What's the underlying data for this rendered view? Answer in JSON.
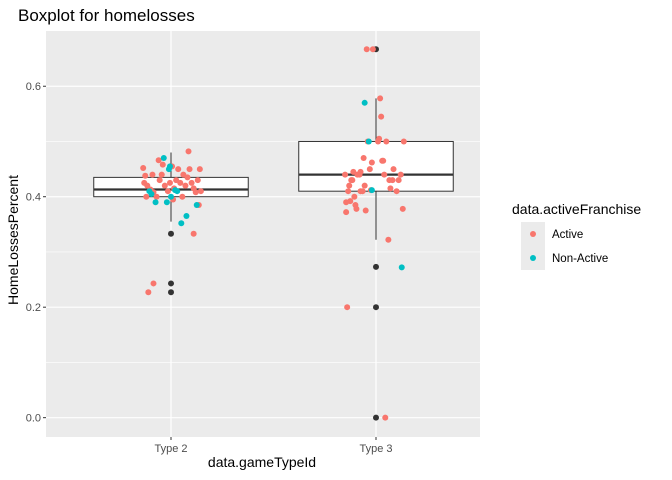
{
  "chart_data": {
    "type": "boxplot",
    "title": "Boxplot for homelosses",
    "xlabel": "data.gameTypeId",
    "ylabel": "HomeLossesPercent",
    "categories": [
      "Type 2",
      "Type 3"
    ],
    "ylim": [
      -0.035,
      0.7
    ],
    "yticks": [
      0.0,
      0.2,
      0.4,
      0.6
    ],
    "ytick_labels": [
      "0.0",
      "0.2",
      "0.4",
      "0.6"
    ],
    "grid": true,
    "legend": {
      "title": "data.activeFranchise",
      "placement": "right",
      "entries": [
        {
          "label": "Active",
          "color": "#F8766D"
        },
        {
          "label": "Non-Active",
          "color": "#00BFC4"
        }
      ]
    },
    "boxes": [
      {
        "category": "Type 2",
        "whisker_low": 0.355,
        "q1": 0.4,
        "median": 0.413,
        "q3": 0.435,
        "whisker_high": 0.48,
        "outliers": [
          0.333,
          0.243,
          0.227
        ]
      },
      {
        "category": "Type 3",
        "whisker_low": 0.322,
        "q1": 0.41,
        "median": 0.44,
        "q3": 0.5,
        "whisker_high": 0.578,
        "outliers": [
          0.667,
          0.273,
          0.2,
          0.0
        ]
      }
    ],
    "points": [
      {
        "category": "Type 2",
        "jitter": -0.27,
        "y": 0.452,
        "group": "Active"
      },
      {
        "category": "Type 2",
        "jitter": -0.25,
        "y": 0.438,
        "group": "Active"
      },
      {
        "category": "Type 2",
        "jitter": -0.26,
        "y": 0.425,
        "group": "Active"
      },
      {
        "category": "Type 2",
        "jitter": -0.23,
        "y": 0.42,
        "group": "Active"
      },
      {
        "category": "Type 2",
        "jitter": -0.24,
        "y": 0.4,
        "group": "Active"
      },
      {
        "category": "Type 2",
        "jitter": -0.2,
        "y": 0.413,
        "group": "Active"
      },
      {
        "category": "Type 2",
        "jitter": -0.17,
        "y": 0.408,
        "group": "Active"
      },
      {
        "category": "Type 2",
        "jitter": -0.14,
        "y": 0.4,
        "group": "Active"
      },
      {
        "category": "Type 2",
        "jitter": -0.12,
        "y": 0.466,
        "group": "Active"
      },
      {
        "category": "Type 2",
        "jitter": -0.11,
        "y": 0.43,
        "group": "Active"
      },
      {
        "category": "Type 2",
        "jitter": -0.09,
        "y": 0.44,
        "group": "Active"
      },
      {
        "category": "Type 2",
        "jitter": -0.08,
        "y": 0.458,
        "group": "Active"
      },
      {
        "category": "Type 2",
        "jitter": -0.06,
        "y": 0.42,
        "group": "Active"
      },
      {
        "category": "Type 2",
        "jitter": -0.03,
        "y": 0.41,
        "group": "Active"
      },
      {
        "category": "Type 2",
        "jitter": -0.01,
        "y": 0.425,
        "group": "Active"
      },
      {
        "category": "Type 2",
        "jitter": 0.01,
        "y": 0.455,
        "group": "Active"
      },
      {
        "category": "Type 2",
        "jitter": 0.03,
        "y": 0.415,
        "group": "Active"
      },
      {
        "category": "Type 2",
        "jitter": 0.05,
        "y": 0.43,
        "group": "Active"
      },
      {
        "category": "Type 2",
        "jitter": 0.07,
        "y": 0.45,
        "group": "Active"
      },
      {
        "category": "Type 2",
        "jitter": 0.09,
        "y": 0.425,
        "group": "Active"
      },
      {
        "category": "Type 2",
        "jitter": 0.11,
        "y": 0.4,
        "group": "Active"
      },
      {
        "category": "Type 2",
        "jitter": 0.12,
        "y": 0.44,
        "group": "Active"
      },
      {
        "category": "Type 2",
        "jitter": 0.14,
        "y": 0.42,
        "group": "Active"
      },
      {
        "category": "Type 2",
        "jitter": 0.16,
        "y": 0.435,
        "group": "Active"
      },
      {
        "category": "Type 2",
        "jitter": 0.17,
        "y": 0.482,
        "group": "Active"
      },
      {
        "category": "Type 2",
        "jitter": 0.18,
        "y": 0.45,
        "group": "Active"
      },
      {
        "category": "Type 2",
        "jitter": 0.2,
        "y": 0.425,
        "group": "Active"
      },
      {
        "category": "Type 2",
        "jitter": 0.22,
        "y": 0.415,
        "group": "Active"
      },
      {
        "category": "Type 2",
        "jitter": 0.24,
        "y": 0.408,
        "group": "Active"
      },
      {
        "category": "Type 2",
        "jitter": 0.26,
        "y": 0.43,
        "group": "Active"
      },
      {
        "category": "Type 2",
        "jitter": 0.28,
        "y": 0.45,
        "group": "Active"
      },
      {
        "category": "Type 2",
        "jitter": 0.29,
        "y": 0.41,
        "group": "Active"
      },
      {
        "category": "Type 2",
        "jitter": 0.27,
        "y": 0.385,
        "group": "Active"
      },
      {
        "category": "Type 2",
        "jitter": 0.22,
        "y": 0.333,
        "group": "Active"
      },
      {
        "category": "Type 2",
        "jitter": -0.22,
        "y": 0.227,
        "group": "Active"
      },
      {
        "category": "Type 2",
        "jitter": -0.17,
        "y": 0.243,
        "group": "Active"
      },
      {
        "category": "Type 2",
        "jitter": -0.18,
        "y": 0.44,
        "group": "Active"
      },
      {
        "category": "Type 2",
        "jitter": 0.02,
        "y": 0.395,
        "group": "Active"
      },
      {
        "category": "Type 2",
        "jitter": -0.21,
        "y": 0.41,
        "group": "Non-Active"
      },
      {
        "category": "Type 2",
        "jitter": -0.19,
        "y": 0.405,
        "group": "Non-Active"
      },
      {
        "category": "Type 2",
        "jitter": -0.15,
        "y": 0.39,
        "group": "Non-Active"
      },
      {
        "category": "Type 2",
        "jitter": -0.07,
        "y": 0.47,
        "group": "Non-Active"
      },
      {
        "category": "Type 2",
        "jitter": -0.04,
        "y": 0.39,
        "group": "Non-Active"
      },
      {
        "category": "Type 2",
        "jitter": -0.02,
        "y": 0.45,
        "group": "Non-Active"
      },
      {
        "category": "Type 2",
        "jitter": 0.0,
        "y": 0.4,
        "group": "Non-Active"
      },
      {
        "category": "Type 2",
        "jitter": 0.04,
        "y": 0.412,
        "group": "Non-Active"
      },
      {
        "category": "Type 2",
        "jitter": 0.06,
        "y": 0.41,
        "group": "Non-Active"
      },
      {
        "category": "Type 2",
        "jitter": 0.1,
        "y": 0.352,
        "group": "Non-Active"
      },
      {
        "category": "Type 2",
        "jitter": 0.15,
        "y": 0.365,
        "group": "Non-Active"
      },
      {
        "category": "Type 2",
        "jitter": 0.25,
        "y": 0.385,
        "group": "Non-Active"
      },
      {
        "category": "Type 2",
        "jitter": -0.01,
        "y": 0.455,
        "group": "Non-Active"
      },
      {
        "category": "Type 3",
        "jitter": -0.3,
        "y": 0.44,
        "group": "Active"
      },
      {
        "category": "Type 3",
        "jitter": -0.29,
        "y": 0.39,
        "group": "Active"
      },
      {
        "category": "Type 3",
        "jitter": -0.29,
        "y": 0.372,
        "group": "Active"
      },
      {
        "category": "Type 3",
        "jitter": -0.28,
        "y": 0.2,
        "group": "Active"
      },
      {
        "category": "Type 3",
        "jitter": -0.27,
        "y": 0.41,
        "group": "Active"
      },
      {
        "category": "Type 3",
        "jitter": -0.25,
        "y": 0.392,
        "group": "Active"
      },
      {
        "category": "Type 3",
        "jitter": -0.24,
        "y": 0.43,
        "group": "Active"
      },
      {
        "category": "Type 3",
        "jitter": -0.22,
        "y": 0.445,
        "group": "Active"
      },
      {
        "category": "Type 3",
        "jitter": -0.21,
        "y": 0.4,
        "group": "Active"
      },
      {
        "category": "Type 3",
        "jitter": -0.2,
        "y": 0.385,
        "group": "Active"
      },
      {
        "category": "Type 3",
        "jitter": -0.19,
        "y": 0.378,
        "group": "Active"
      },
      {
        "category": "Type 3",
        "jitter": -0.18,
        "y": 0.44,
        "group": "Active"
      },
      {
        "category": "Type 3",
        "jitter": -0.16,
        "y": 0.44,
        "group": "Active"
      },
      {
        "category": "Type 3",
        "jitter": -0.15,
        "y": 0.445,
        "group": "Active"
      },
      {
        "category": "Type 3",
        "jitter": -0.13,
        "y": 0.41,
        "group": "Active"
      },
      {
        "category": "Type 3",
        "jitter": -0.12,
        "y": 0.47,
        "group": "Active"
      },
      {
        "category": "Type 3",
        "jitter": -0.11,
        "y": 0.42,
        "group": "Active"
      },
      {
        "category": "Type 3",
        "jitter": -0.1,
        "y": 0.375,
        "group": "Active"
      },
      {
        "category": "Type 3",
        "jitter": -0.09,
        "y": 0.667,
        "group": "Active"
      },
      {
        "category": "Type 3",
        "jitter": -0.08,
        "y": 0.5,
        "group": "Active"
      },
      {
        "category": "Type 3",
        "jitter": -0.06,
        "y": 0.45,
        "group": "Active"
      },
      {
        "category": "Type 3",
        "jitter": -0.05,
        "y": 0.412,
        "group": "Active"
      },
      {
        "category": "Type 3",
        "jitter": -0.04,
        "y": 0.462,
        "group": "Active"
      },
      {
        "category": "Type 3",
        "jitter": -0.03,
        "y": 0.667,
        "group": "Active"
      },
      {
        "category": "Type 3",
        "jitter": 0.02,
        "y": 0.5,
        "group": "Active"
      },
      {
        "category": "Type 3",
        "jitter": 0.03,
        "y": 0.505,
        "group": "Active"
      },
      {
        "category": "Type 3",
        "jitter": 0.04,
        "y": 0.578,
        "group": "Active"
      },
      {
        "category": "Type 3",
        "jitter": 0.05,
        "y": 0.545,
        "group": "Active"
      },
      {
        "category": "Type 3",
        "jitter": 0.06,
        "y": 0.465,
        "group": "Active"
      },
      {
        "category": "Type 3",
        "jitter": 0.07,
        "y": 0.465,
        "group": "Active"
      },
      {
        "category": "Type 3",
        "jitter": 0.08,
        "y": 0.44,
        "group": "Active"
      },
      {
        "category": "Type 3",
        "jitter": 0.1,
        "y": 0.5,
        "group": "Active"
      },
      {
        "category": "Type 3",
        "jitter": 0.12,
        "y": 0.322,
        "group": "Active"
      },
      {
        "category": "Type 3",
        "jitter": 0.13,
        "y": 0.43,
        "group": "Active"
      },
      {
        "category": "Type 3",
        "jitter": 0.14,
        "y": 0.415,
        "group": "Active"
      },
      {
        "category": "Type 3",
        "jitter": 0.16,
        "y": 0.43,
        "group": "Active"
      },
      {
        "category": "Type 3",
        "jitter": 0.17,
        "y": 0.45,
        "group": "Active"
      },
      {
        "category": "Type 3",
        "jitter": 0.2,
        "y": 0.41,
        "group": "Active"
      },
      {
        "category": "Type 3",
        "jitter": 0.22,
        "y": 0.43,
        "group": "Active"
      },
      {
        "category": "Type 3",
        "jitter": 0.24,
        "y": 0.44,
        "group": "Active"
      },
      {
        "category": "Type 3",
        "jitter": 0.26,
        "y": 0.378,
        "group": "Active"
      },
      {
        "category": "Type 3",
        "jitter": 0.27,
        "y": 0.5,
        "group": "Active"
      },
      {
        "category": "Type 3",
        "jitter": 0.09,
        "y": 0.0,
        "group": "Active"
      },
      {
        "category": "Type 3",
        "jitter": -0.15,
        "y": 0.41,
        "group": "Active"
      },
      {
        "category": "Type 3",
        "jitter": -0.26,
        "y": 0.42,
        "group": "Active"
      },
      {
        "category": "Type 3",
        "jitter": -0.23,
        "y": 0.43,
        "group": "Active"
      },
      {
        "category": "Type 3",
        "jitter": -0.11,
        "y": 0.57,
        "group": "Non-Active"
      },
      {
        "category": "Type 3",
        "jitter": -0.07,
        "y": 0.5,
        "group": "Non-Active"
      },
      {
        "category": "Type 3",
        "jitter": -0.04,
        "y": 0.412,
        "group": "Non-Active"
      },
      {
        "category": "Type 3",
        "jitter": 0.25,
        "y": 0.272,
        "group": "Non-Active"
      }
    ]
  }
}
